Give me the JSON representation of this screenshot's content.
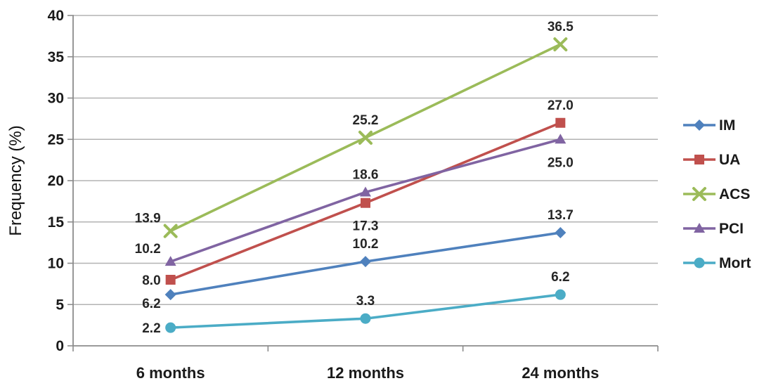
{
  "chart_data": {
    "type": "line",
    "title": "",
    "xlabel": "",
    "ylabel": "Frequency (%)",
    "categories": [
      "6 months",
      "12 months",
      "24 months"
    ],
    "yaxis": {
      "min": 0,
      "max": 40,
      "step": 5,
      "tick_labels": [
        "0",
        "5",
        "10",
        "15",
        "20",
        "25",
        "30",
        "35",
        "40"
      ]
    },
    "grid": true,
    "legend_position": "right",
    "colors": {
      "grid": "#b3b3b3",
      "axis": "#8c8c8c",
      "tick_text": "#1a1a1a",
      "data_label_text": "#262626"
    },
    "series": [
      {
        "name": "IM",
        "color": "#4F81BD",
        "marker": "diamond",
        "values": [
          6.2,
          10.2,
          13.7
        ],
        "labels": [
          "6.2",
          "10.2",
          "13.7"
        ],
        "label_pos": [
          "left-down",
          "above",
          "above"
        ]
      },
      {
        "name": "UA",
        "color": "#C0504D",
        "marker": "square",
        "values": [
          8.0,
          17.3,
          27.0
        ],
        "labels": [
          "8.0",
          "17.3",
          "27.0"
        ],
        "label_pos": [
          "left",
          "below",
          "above"
        ]
      },
      {
        "name": "ACS",
        "color": "#9BBB59",
        "marker": "x",
        "values": [
          13.9,
          25.2,
          36.5
        ],
        "labels": [
          "13.9",
          "25.2",
          "36.5"
        ],
        "label_pos": [
          "left-up",
          "above",
          "above"
        ]
      },
      {
        "name": "PCI",
        "color": "#8064A2",
        "marker": "triangle",
        "values": [
          10.2,
          18.6,
          25.0
        ],
        "labels": [
          "10.2",
          "18.6",
          "25.0"
        ],
        "label_pos": [
          "left-up",
          "above",
          "below"
        ]
      },
      {
        "name": "Mort",
        "color": "#4BACC6",
        "marker": "circle",
        "values": [
          2.2,
          3.3,
          6.2
        ],
        "labels": [
          "2.2",
          "3.3",
          "6.2"
        ],
        "label_pos": [
          "left",
          "above",
          "above"
        ]
      }
    ]
  }
}
